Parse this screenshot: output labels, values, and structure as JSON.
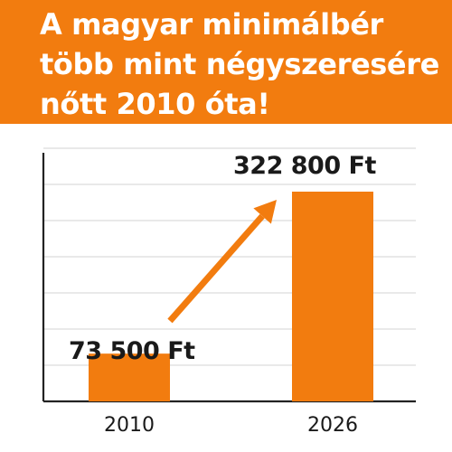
{
  "header": {
    "title_lines": [
      "A magyar minimálbér",
      "több mint négyszeresére",
      "nőtt 2010 óta!"
    ]
  },
  "colors": {
    "banner": "#f27c0f",
    "bar": "#f27c0f",
    "text_on_banner": "#ffffff",
    "text": "#1a1a1a",
    "grid": "#dcdcdc"
  },
  "chart_data": {
    "type": "bar",
    "categories": [
      "2010",
      "2026"
    ],
    "values": [
      73500,
      322800
    ],
    "value_labels": [
      "73 500 Ft",
      "322 800 Ft"
    ],
    "ylim": [
      0,
      360000
    ],
    "grid": true,
    "arrow": true
  }
}
